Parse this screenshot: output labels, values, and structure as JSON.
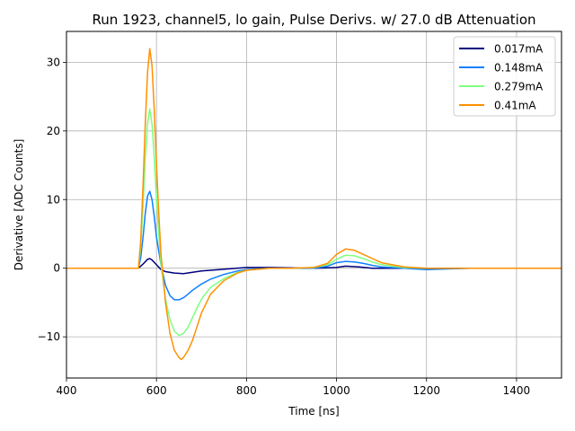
{
  "chart_data": {
    "type": "line",
    "title": "Run 1923, channel5, lo gain, Pulse Derivs. w/ 27.0 dB Attenuation",
    "xlabel": "Time [ns]",
    "ylabel": "Derivative [ADC Counts]",
    "xlim": [
      400,
      1500
    ],
    "ylim": [
      -16,
      34.5
    ],
    "xticks": [
      400,
      600,
      800,
      1000,
      1200,
      1400
    ],
    "yticks": [
      -10,
      0,
      10,
      20,
      30
    ],
    "ytick_labels": [
      "−10",
      "0",
      "10",
      "20",
      "30"
    ],
    "grid": true,
    "legend_position": "top-right",
    "series": [
      {
        "name": "0.017mA",
        "color": "#00007f",
        "x": [
          400,
          500,
          560,
          570,
          580,
          585,
          590,
          600,
          610,
          620,
          640,
          660,
          680,
          700,
          740,
          800,
          850,
          950,
          1000,
          1020,
          1050,
          1080,
          1120,
          1200,
          1300,
          1400,
          1500
        ],
        "y": [
          0,
          0,
          0,
          0.6,
          1.3,
          1.4,
          1.2,
          0.5,
          -0.2,
          -0.5,
          -0.7,
          -0.8,
          -0.6,
          -0.4,
          -0.2,
          0.1,
          0.1,
          0,
          0.1,
          0.3,
          0.2,
          0,
          0,
          0,
          0,
          0,
          0
        ]
      },
      {
        "name": "0.148mA",
        "color": "#0f7fff",
        "x": [
          400,
          500,
          560,
          565,
          570,
          575,
          580,
          585,
          590,
          595,
          600,
          610,
          620,
          630,
          640,
          650,
          660,
          670,
          680,
          700,
          720,
          750,
          780,
          800,
          850,
          900,
          950,
          980,
          1000,
          1020,
          1040,
          1060,
          1080,
          1100,
          1150,
          1200,
          1300,
          1400,
          1500
        ],
        "y": [
          0,
          0,
          0,
          1.5,
          4.5,
          8,
          10.5,
          11.2,
          10,
          7.5,
          4.5,
          0.5,
          -2.5,
          -4,
          -4.6,
          -4.6,
          -4.3,
          -3.8,
          -3.2,
          -2.3,
          -1.6,
          -0.9,
          -0.4,
          -0.2,
          0,
          0,
          0,
          0.3,
          0.8,
          1.0,
          0.9,
          0.7,
          0.4,
          0.2,
          0,
          -0.2,
          0,
          0,
          0
        ]
      },
      {
        "name": "0.279mA",
        "color": "#7fff7f",
        "x": [
          400,
          500,
          560,
          565,
          570,
          575,
          580,
          585,
          590,
          595,
          600,
          605,
          610,
          620,
          630,
          640,
          650,
          660,
          670,
          680,
          690,
          700,
          720,
          750,
          780,
          800,
          850,
          900,
          950,
          980,
          1000,
          1020,
          1040,
          1060,
          1080,
          1100,
          1150,
          1200,
          1300,
          1400,
          1500
        ],
        "y": [
          0,
          0,
          0,
          3,
          9,
          16,
          21,
          23.2,
          21,
          16,
          10,
          5,
          0.5,
          -4.5,
          -7.5,
          -9.2,
          -9.8,
          -9.5,
          -8.6,
          -7.2,
          -5.8,
          -4.5,
          -2.8,
          -1.5,
          -0.6,
          -0.3,
          0,
          0,
          0.1,
          0.5,
          1.3,
          1.9,
          1.8,
          1.4,
          0.9,
          0.5,
          0.1,
          0,
          0,
          0,
          0
        ]
      },
      {
        "name": "0.41mA",
        "color": "#ff9000",
        "x": [
          400,
          500,
          560,
          565,
          570,
          575,
          580,
          585,
          590,
          595,
          600,
          605,
          610,
          620,
          630,
          640,
          650,
          655,
          660,
          670,
          680,
          690,
          700,
          720,
          750,
          780,
          800,
          850,
          900,
          950,
          980,
          1000,
          1020,
          1040,
          1060,
          1080,
          1100,
          1150,
          1200,
          1300,
          1400,
          1500
        ],
        "y": [
          0,
          0,
          0,
          4,
          12,
          21,
          28.5,
          32,
          29.5,
          23,
          15,
          8,
          2,
          -5,
          -9.5,
          -12,
          -13,
          -13.3,
          -13,
          -12,
          -10.5,
          -8.5,
          -6.5,
          -3.8,
          -1.8,
          -0.7,
          -0.3,
          0,
          0,
          0.1,
          0.7,
          2.0,
          2.8,
          2.6,
          2.0,
          1.4,
          0.8,
          0.2,
          0,
          0,
          0,
          0
        ]
      }
    ]
  }
}
